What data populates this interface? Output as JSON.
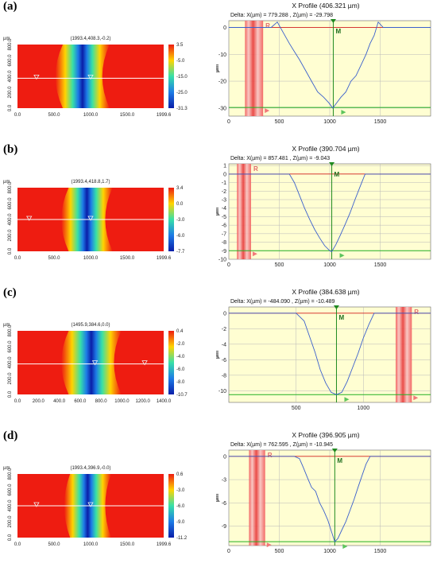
{
  "chart_data": [
    {
      "panel_label": "(a)",
      "map": {
        "coord_label": "(1993.4,408.3,-0.2)",
        "unit": "µm",
        "xticks": [
          "0.0",
          "500.0",
          "1000.0",
          "1500.0",
          "1999.6"
        ],
        "yticks": [
          "0.0",
          "200.0",
          "400.0",
          "600.0",
          "800.0"
        ],
        "colorbar_ticks": [
          "3.5",
          "-5.0",
          "-15.0",
          "-25.0",
          "-31.3"
        ],
        "groove_center_frac": 0.47,
        "groove_half_width_frac": 0.16,
        "groove_bend_frac": 0.05,
        "marker_row_frac": 0.53,
        "marker_positions_frac": [
          0.13,
          0.5
        ]
      },
      "profile": {
        "type": "line",
        "title": "X Profile (406.321 µm)",
        "delta_text": "Delta:  X(µm) = 779.288 ,  Z(µm) = -29.798",
        "xlabel": "",
        "ylabel": "µm",
        "xlim": [
          0,
          2000
        ],
        "ylim": [
          -33,
          2.5
        ],
        "xticks": [
          0,
          500,
          1000,
          1500
        ],
        "yticks": [
          0,
          -10,
          -20,
          -30
        ],
        "ref_band": [
          160,
          340
        ],
        "ref_label": "R",
        "m_x": 1035,
        "m_label": "M",
        "red_level": 0,
        "green_level": -29.8,
        "x": [
          0,
          250,
          350,
          420,
          480,
          540,
          600,
          650,
          700,
          760,
          820,
          880,
          940,
          990,
          1030,
          1070,
          1110,
          1160,
          1210,
          1260,
          1310,
          1360,
          1400,
          1440,
          1480,
          1530,
          1600,
          1700,
          1800,
          1900,
          2000
        ],
        "y": [
          0,
          0,
          0,
          0,
          2,
          -2,
          -6,
          -9,
          -12,
          -16,
          -20,
          -24,
          -26,
          -28,
          -30,
          -28,
          -26,
          -24,
          -20,
          -18,
          -14,
          -10,
          -6,
          -3,
          2,
          0,
          0,
          0,
          0,
          0,
          0
        ]
      }
    },
    {
      "panel_label": "(b)",
      "map": {
        "coord_label": "(1993.4,418.8,1.7)",
        "unit": "µm",
        "xticks": [
          "0.0",
          "500.0",
          "1000.0",
          "1500.0",
          "1999.6"
        ],
        "yticks": [
          "0.0",
          "200.0",
          "400.0",
          "600.0",
          "800.0"
        ],
        "colorbar_ticks": [
          "3.4",
          "0.0",
          "-3.0",
          "-6.0",
          "-7.7"
        ],
        "groove_center_frac": 0.5,
        "groove_half_width_frac": 0.15,
        "groove_bend_frac": 0.05,
        "marker_row_frac": 0.5,
        "marker_positions_frac": [
          0.08,
          0.5
        ]
      },
      "profile": {
        "type": "line",
        "title": "X Profile (390.704 µm)",
        "delta_text": "Delta:  X(µm) = 857.481 ,  Z(µm) = -9.043",
        "xlabel": "",
        "ylabel": "µm",
        "xlim": [
          0,
          2000
        ],
        "ylim": [
          -10,
          1.2
        ],
        "xticks": [
          0,
          500,
          1000,
          1500
        ],
        "yticks": [
          1,
          0,
          -1,
          -2,
          -3,
          -4,
          -5,
          -6,
          -7,
          -8,
          -9,
          -10
        ],
        "ref_band": [
          80,
          220
        ],
        "ref_label": "R",
        "m_x": 1020,
        "m_label": "M",
        "red_level": 0,
        "green_level": -9.0,
        "x": [
          0,
          500,
          600,
          650,
          700,
          750,
          800,
          850,
          900,
          950,
          1000,
          1020,
          1060,
          1100,
          1150,
          1200,
          1250,
          1300,
          1350,
          1400,
          1500,
          1600,
          1700,
          1800,
          1900,
          2000
        ],
        "y": [
          0,
          0,
          0,
          -1,
          -2.5,
          -4,
          -5.3,
          -6.5,
          -7.5,
          -8.4,
          -9,
          -9.1,
          -8.3,
          -7.3,
          -6,
          -4.6,
          -3,
          -1.5,
          0,
          0,
          0,
          0,
          0,
          0,
          0,
          0
        ]
      }
    },
    {
      "panel_label": "(c)",
      "map": {
        "coord_label": "(1495.9,384.6,0.0)",
        "unit": "µm",
        "xticks": [
          "0.0",
          "200.0",
          "400.0",
          "600.0",
          "800.0",
          "1000.0",
          "1200.0",
          "1400.0"
        ],
        "yticks": [
          "0.0",
          "200.0",
          "400.0",
          "600.0",
          "800.0"
        ],
        "colorbar_ticks": [
          "0.4",
          "-2.0",
          "-4.0",
          "-6.0",
          "-8.0",
          "-10.7"
        ],
        "groove_center_frac": 0.53,
        "groove_half_width_frac": 0.18,
        "groove_bend_frac": 0.05,
        "marker_row_frac": 0.52,
        "marker_positions_frac": [
          0.53,
          0.87
        ]
      },
      "profile": {
        "type": "line",
        "title": "X Profile (384.638 µm)",
        "delta_text": "Delta:  X(µm) = -484.090 ,  Z(µm) = -10.489",
        "xlabel": "",
        "ylabel": "µm",
        "xlim": [
          0,
          1500
        ],
        "ylim": [
          -11.5,
          0.8
        ],
        "xticks": [
          500,
          1000
        ],
        "yticks": [
          0,
          -2,
          -4,
          -6,
          -8,
          -10
        ],
        "ref_band": [
          1240,
          1360
        ],
        "ref_label": "R",
        "m_x": 800,
        "m_label": "M",
        "red_level": 0,
        "green_level": -10.5,
        "x": [
          0,
          500,
          560,
          600,
          640,
          680,
          720,
          760,
          800,
          840,
          880,
          920,
          960,
          1000,
          1040,
          1080,
          1100,
          1200,
          1300,
          1400,
          1500
        ],
        "y": [
          0,
          0,
          -1,
          -3,
          -5,
          -7.3,
          -9,
          -10.2,
          -10.5,
          -10.2,
          -8.8,
          -7,
          -5.2,
          -3.2,
          -1.5,
          0,
          0,
          0,
          0,
          0,
          0
        ]
      }
    },
    {
      "panel_label": "(d)",
      "map": {
        "coord_label": "(1993.4,396.9,-0.0)",
        "unit": "µm",
        "xticks": [
          "0.0",
          "500.0",
          "1000.0",
          "1500.0",
          "1999.6"
        ],
        "yticks": [
          "0.0",
          "200.0",
          "400.0",
          "600.0",
          "800.0"
        ],
        "colorbar_ticks": [
          "0.6",
          "-3.0",
          "-6.0",
          "-9.0",
          "-11.2"
        ],
        "groove_center_frac": 0.5,
        "groove_half_width_frac": 0.14,
        "groove_bend_frac": 0.04,
        "marker_row_frac": 0.5,
        "marker_positions_frac": [
          0.13,
          0.5
        ]
      },
      "profile": {
        "type": "line",
        "title": "X Profile (396.905 µm)",
        "delta_text": "Delta:  X(µm) = 762.595 ,  Z(µm) = -10.945",
        "xlabel": "",
        "ylabel": "µm",
        "xlim": [
          0,
          2000
        ],
        "ylim": [
          -11.5,
          0.8
        ],
        "xticks": [
          0,
          500,
          1000,
          1500
        ],
        "yticks": [
          0,
          -3,
          -6,
          -9
        ],
        "ref_band": [
          200,
          360
        ],
        "ref_label": "R",
        "m_x": 1050,
        "m_label": "M",
        "red_level": 0,
        "green_level": -11.0,
        "x": [
          0,
          500,
          650,
          700,
          740,
          780,
          820,
          860,
          900,
          940,
          980,
          1020,
          1050,
          1080,
          1120,
          1160,
          1200,
          1240,
          1280,
          1320,
          1360,
          1400,
          1500,
          1600,
          1700,
          1800,
          2000
        ],
        "y": [
          0,
          0,
          0,
          -0.3,
          -1.5,
          -2.8,
          -4,
          -4.5,
          -6,
          -7,
          -8.2,
          -9.8,
          -11,
          -10.6,
          -9.5,
          -8.4,
          -7,
          -5.6,
          -4,
          -2.5,
          -1,
          0,
          0,
          0,
          0,
          0,
          0
        ]
      }
    }
  ]
}
